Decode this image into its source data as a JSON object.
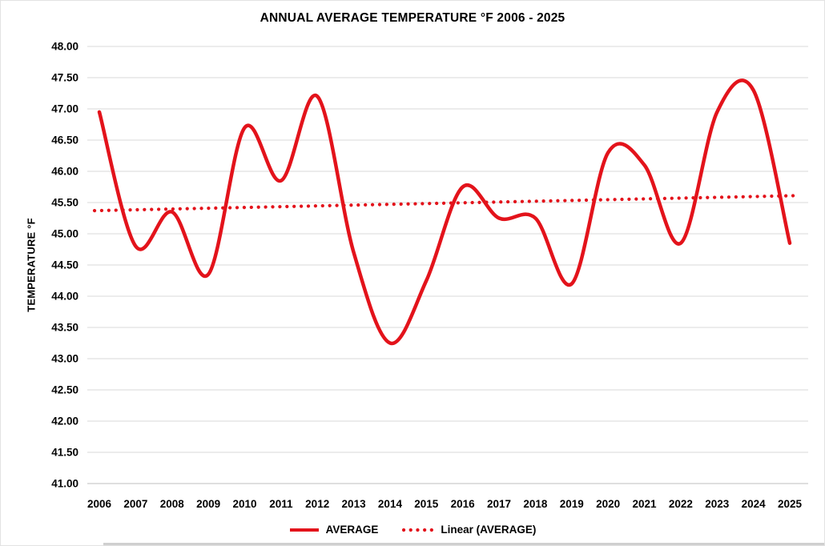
{
  "window": {
    "background": "#ffffff",
    "border_color": "#e2e2e2",
    "text_color": "#000000"
  },
  "chart_data": {
    "type": "line",
    "title": "ANNUAL AVERAGE TEMPERATURE °F 2006 - 2025",
    "xlabel": "",
    "ylabel": "TEMPERATURE °F",
    "categories": [
      "2006",
      "2007",
      "2008",
      "2009",
      "2010",
      "2011",
      "2012",
      "2013",
      "2014",
      "2015",
      "2016",
      "2017",
      "2018",
      "2019",
      "2020",
      "2021",
      "2022",
      "2023",
      "2024",
      "2025"
    ],
    "series": [
      {
        "name": "AVERAGE",
        "style": "solid-smooth",
        "color": "#e3131b",
        "values": [
          46.95,
          44.8,
          45.35,
          44.35,
          46.7,
          45.85,
          47.2,
          44.7,
          43.25,
          44.25,
          45.75,
          45.25,
          45.25,
          44.2,
          46.3,
          46.1,
          44.85,
          46.95,
          47.3,
          44.85
        ]
      },
      {
        "name": "Linear (AVERAGE)",
        "style": "dotted",
        "color": "#e3131b",
        "trend": {
          "start": 45.37,
          "end": 45.61
        }
      }
    ],
    "ylim": [
      41.0,
      48.0
    ],
    "ytick_step": 0.5,
    "ytick_labels": [
      "48.00",
      "47.50",
      "47.00",
      "46.50",
      "46.00",
      "45.50",
      "45.00",
      "44.50",
      "44.00",
      "43.50",
      "43.00",
      "42.50",
      "42.00",
      "41.50",
      "41.00"
    ],
    "grid": "horizontal",
    "gridline_color": "#d9d9d9",
    "axisline_color": "#bfbfbf",
    "legend_position": "bottom",
    "legend": [
      {
        "label": "AVERAGE",
        "marker": "solid-line"
      },
      {
        "label": "Linear (AVERAGE)",
        "marker": "dotted-line"
      }
    ]
  }
}
